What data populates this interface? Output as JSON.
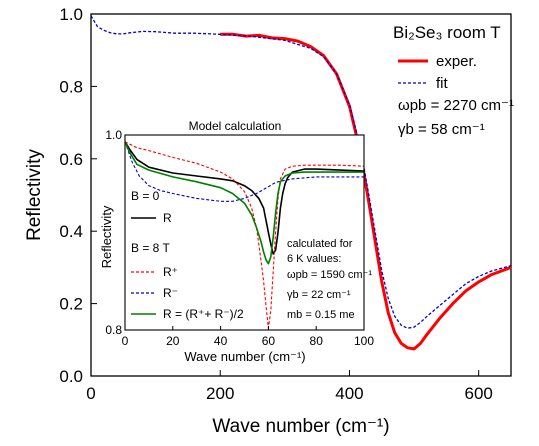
{
  "chart_data": [
    {
      "type": "line",
      "xlabel": "Wave number (cm⁻¹)",
      "ylabel": "Reflectivity",
      "xlim": [
        0,
        650
      ],
      "ylim": [
        0.0,
        1.0
      ],
      "xticks": [
        0,
        200,
        400,
        600
      ],
      "yticks": [
        0.0,
        0.2,
        0.4,
        0.6,
        0.8,
        1.0
      ],
      "xtick_labels": [
        "0",
        "200",
        "400",
        "600"
      ],
      "ytick_labels": [
        "0.0",
        "0.2",
        "0.4",
        "0.6",
        "0.8",
        "1.0"
      ],
      "legend": {
        "title": "Bi₂Se₃ room T",
        "placement": "top-right",
        "entries": [
          "exper.",
          "fit"
        ],
        "params": [
          "ωpb = 2270 cm⁻¹",
          "γb = 58 cm⁻¹"
        ]
      },
      "series": [
        {
          "name": "exper.",
          "color": "#ff0000",
          "style": "solid",
          "x": [
            200,
            220,
            240,
            260,
            280,
            300,
            320,
            340,
            360,
            380,
            400,
            410,
            420,
            430,
            440,
            450,
            460,
            470,
            480,
            490,
            500,
            510,
            520,
            540,
            560,
            580,
            600,
            620,
            650
          ],
          "y": [
            0.944,
            0.944,
            0.939,
            0.941,
            0.934,
            0.932,
            0.925,
            0.91,
            0.885,
            0.835,
            0.745,
            0.67,
            0.585,
            0.48,
            0.37,
            0.26,
            0.175,
            0.12,
            0.09,
            0.078,
            0.075,
            0.09,
            0.115,
            0.16,
            0.2,
            0.235,
            0.26,
            0.28,
            0.3
          ]
        },
        {
          "name": "fit",
          "color": "#0000cc",
          "style": "dashed",
          "x": [
            0,
            5,
            10,
            20,
            30,
            40,
            50,
            60,
            80,
            100,
            130,
            160,
            200,
            250,
            300,
            340,
            360,
            380,
            400,
            410,
            420,
            430,
            440,
            450,
            460,
            470,
            480,
            490,
            500,
            510,
            520,
            540,
            560,
            580,
            600,
            620,
            650
          ],
          "y": [
            0.995,
            0.98,
            0.965,
            0.955,
            0.948,
            0.945,
            0.945,
            0.948,
            0.952,
            0.951,
            0.947,
            0.947,
            0.944,
            0.938,
            0.927,
            0.905,
            0.882,
            0.835,
            0.75,
            0.68,
            0.6,
            0.5,
            0.395,
            0.29,
            0.215,
            0.165,
            0.14,
            0.132,
            0.135,
            0.148,
            0.165,
            0.195,
            0.225,
            0.255,
            0.275,
            0.29,
            0.305
          ]
        }
      ]
    },
    {
      "type": "line",
      "title": "Model calculation",
      "xlabel": "Wave number (cm⁻¹)",
      "ylabel": "Reflectivity",
      "xlim": [
        0,
        100
      ],
      "ylim": [
        0.8,
        1.0
      ],
      "xticks": [
        0,
        20,
        40,
        60,
        80,
        100
      ],
      "yticks": [
        0.8,
        1.0
      ],
      "xtick_labels": [
        "0",
        "20",
        "40",
        "60",
        "80",
        "100"
      ],
      "ytick_labels": [
        "0.8",
        "1.0"
      ],
      "legend_groups": [
        "B = 0",
        "B = 8 T"
      ],
      "annotation": [
        "calculated for",
        "6 K values:",
        "ωpb = 1590 cm⁻¹",
        "γb = 22 cm⁻¹",
        "mb = 0.15 me"
      ],
      "series": [
        {
          "name": "R",
          "color": "#000000",
          "style": "solid",
          "x": [
            0,
            2,
            5,
            10,
            20,
            30,
            40,
            45,
            50,
            53,
            56,
            58,
            60,
            61,
            62,
            63,
            64,
            65,
            66,
            67,
            68,
            70,
            75,
            80,
            90,
            100
          ],
          "y": [
            0.993,
            0.985,
            0.975,
            0.967,
            0.961,
            0.958,
            0.955,
            0.953,
            0.948,
            0.943,
            0.935,
            0.925,
            0.9,
            0.888,
            0.878,
            0.882,
            0.9,
            0.925,
            0.94,
            0.95,
            0.956,
            0.962,
            0.965,
            0.965,
            0.964,
            0.963
          ]
        },
        {
          "name": "R⁺",
          "color": "#ff0000",
          "style": "dashed",
          "x": [
            0,
            5,
            10,
            20,
            30,
            40,
            45,
            50,
            53,
            55,
            57,
            58,
            59,
            60,
            61,
            62,
            63,
            64,
            65,
            67,
            70,
            75,
            80,
            90,
            100
          ],
          "y": [
            0.993,
            0.987,
            0.984,
            0.977,
            0.971,
            0.962,
            0.955,
            0.942,
            0.925,
            0.905,
            0.87,
            0.85,
            0.825,
            0.802,
            0.82,
            0.86,
            0.9,
            0.935,
            0.955,
            0.965,
            0.968,
            0.969,
            0.969,
            0.969,
            0.968
          ]
        },
        {
          "name": "R⁻",
          "color": "#0000cc",
          "style": "dashed",
          "x": [
            0,
            3,
            6,
            10,
            15,
            20,
            30,
            40,
            45,
            50,
            55,
            60,
            62,
            64,
            66,
            68,
            70,
            75,
            80,
            90,
            100
          ],
          "y": [
            0.993,
            0.972,
            0.958,
            0.948,
            0.943,
            0.94,
            0.935,
            0.932,
            0.932,
            0.935,
            0.94,
            0.947,
            0.95,
            0.952,
            0.953,
            0.954,
            0.955,
            0.956,
            0.957,
            0.957,
            0.957
          ]
        },
        {
          "name": "R = (R⁺+ R⁻)/2",
          "color": "#008000",
          "style": "solid",
          "x": [
            0,
            2,
            5,
            10,
            20,
            30,
            40,
            45,
            50,
            53,
            55,
            57,
            58,
            59,
            60,
            61,
            62,
            63,
            64,
            65,
            67,
            70,
            75,
            80,
            90,
            100
          ],
          "y": [
            0.993,
            0.982,
            0.97,
            0.964,
            0.957,
            0.952,
            0.946,
            0.94,
            0.93,
            0.918,
            0.905,
            0.89,
            0.88,
            0.872,
            0.868,
            0.875,
            0.895,
            0.92,
            0.94,
            0.952,
            0.958,
            0.961,
            0.962,
            0.962,
            0.962,
            0.962
          ]
        }
      ]
    }
  ]
}
